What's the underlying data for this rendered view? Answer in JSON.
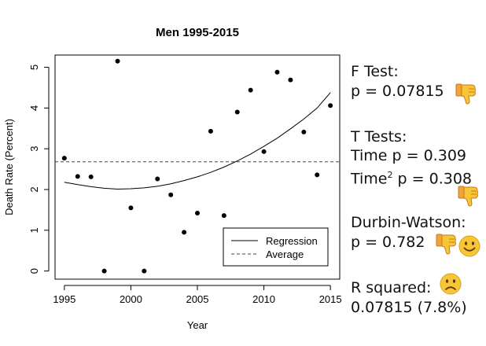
{
  "chart_data": {
    "type": "scatter",
    "title": "Men 1995-2015",
    "xlabel": "Year",
    "ylabel": "Death Rate (Percent)",
    "xlim": [
      1994.3,
      2015.7
    ],
    "ylim": [
      -0.2,
      5.3
    ],
    "xticks": [
      "1995",
      "2000",
      "2005",
      "2010",
      "2015"
    ],
    "yticks": [
      "0",
      "1",
      "2",
      "3",
      "4",
      "5"
    ],
    "grid": false,
    "legend_position": "bottom-right",
    "points": {
      "x": [
        1995,
        1996,
        1997,
        1998,
        1999,
        2000,
        2001,
        2002,
        2003,
        2004,
        2005,
        2006,
        2007,
        2008,
        2009,
        2010,
        2011,
        2012,
        2013,
        2014,
        2015
      ],
      "y": [
        2.77,
        2.32,
        2.31,
        0.0,
        5.15,
        1.55,
        0.0,
        2.26,
        1.87,
        0.95,
        1.42,
        3.43,
        1.36,
        3.9,
        4.44,
        2.93,
        4.88,
        4.69,
        3.41,
        2.36,
        4.06
      ]
    },
    "series": [
      {
        "name": "Regression",
        "style": "solid",
        "x": [
          1995,
          1996,
          1997,
          1998,
          1999,
          2000,
          2001,
          2002,
          2003,
          2004,
          2005,
          2006,
          2007,
          2008,
          2009,
          2010,
          2011,
          2012,
          2013,
          2014,
          2015
        ],
        "y": [
          2.18,
          2.12,
          2.07,
          2.03,
          2.01,
          2.02,
          2.04,
          2.08,
          2.14,
          2.22,
          2.31,
          2.42,
          2.55,
          2.7,
          2.87,
          3.06,
          3.26,
          3.49,
          3.73,
          4.0,
          4.38
        ]
      },
      {
        "name": "Average",
        "style": "dashed",
        "x": [
          1994.3,
          2015.7
        ],
        "y": [
          2.68,
          2.68
        ]
      }
    ],
    "legend": [
      "Regression",
      "Average"
    ]
  },
  "stats": {
    "f_test_title": "F Test:",
    "f_test_p": "p = 0.07815",
    "t_tests_title": "T Tests:",
    "time_p": "Time p = 0.309",
    "time2_label": "Time",
    "time2_exp": "2",
    "time2_p": " p = 0.308",
    "dw_title": "Durbin-Watson:",
    "dw_p": "p = 0.782",
    "r2_title": "R squared:",
    "r2_value": "0.07815 (7.8%)"
  },
  "icons": {
    "f_test": "thumbs-down-icon",
    "time2": "thumbs-down-icon",
    "dw_thumb": "thumbs-down-icon",
    "dw_face": "smiling-face-icon",
    "r2": "frowning-face-icon"
  },
  "colors": {
    "emoji_yellow": "#F7C637",
    "thumb_orange": "#F0A43A"
  }
}
